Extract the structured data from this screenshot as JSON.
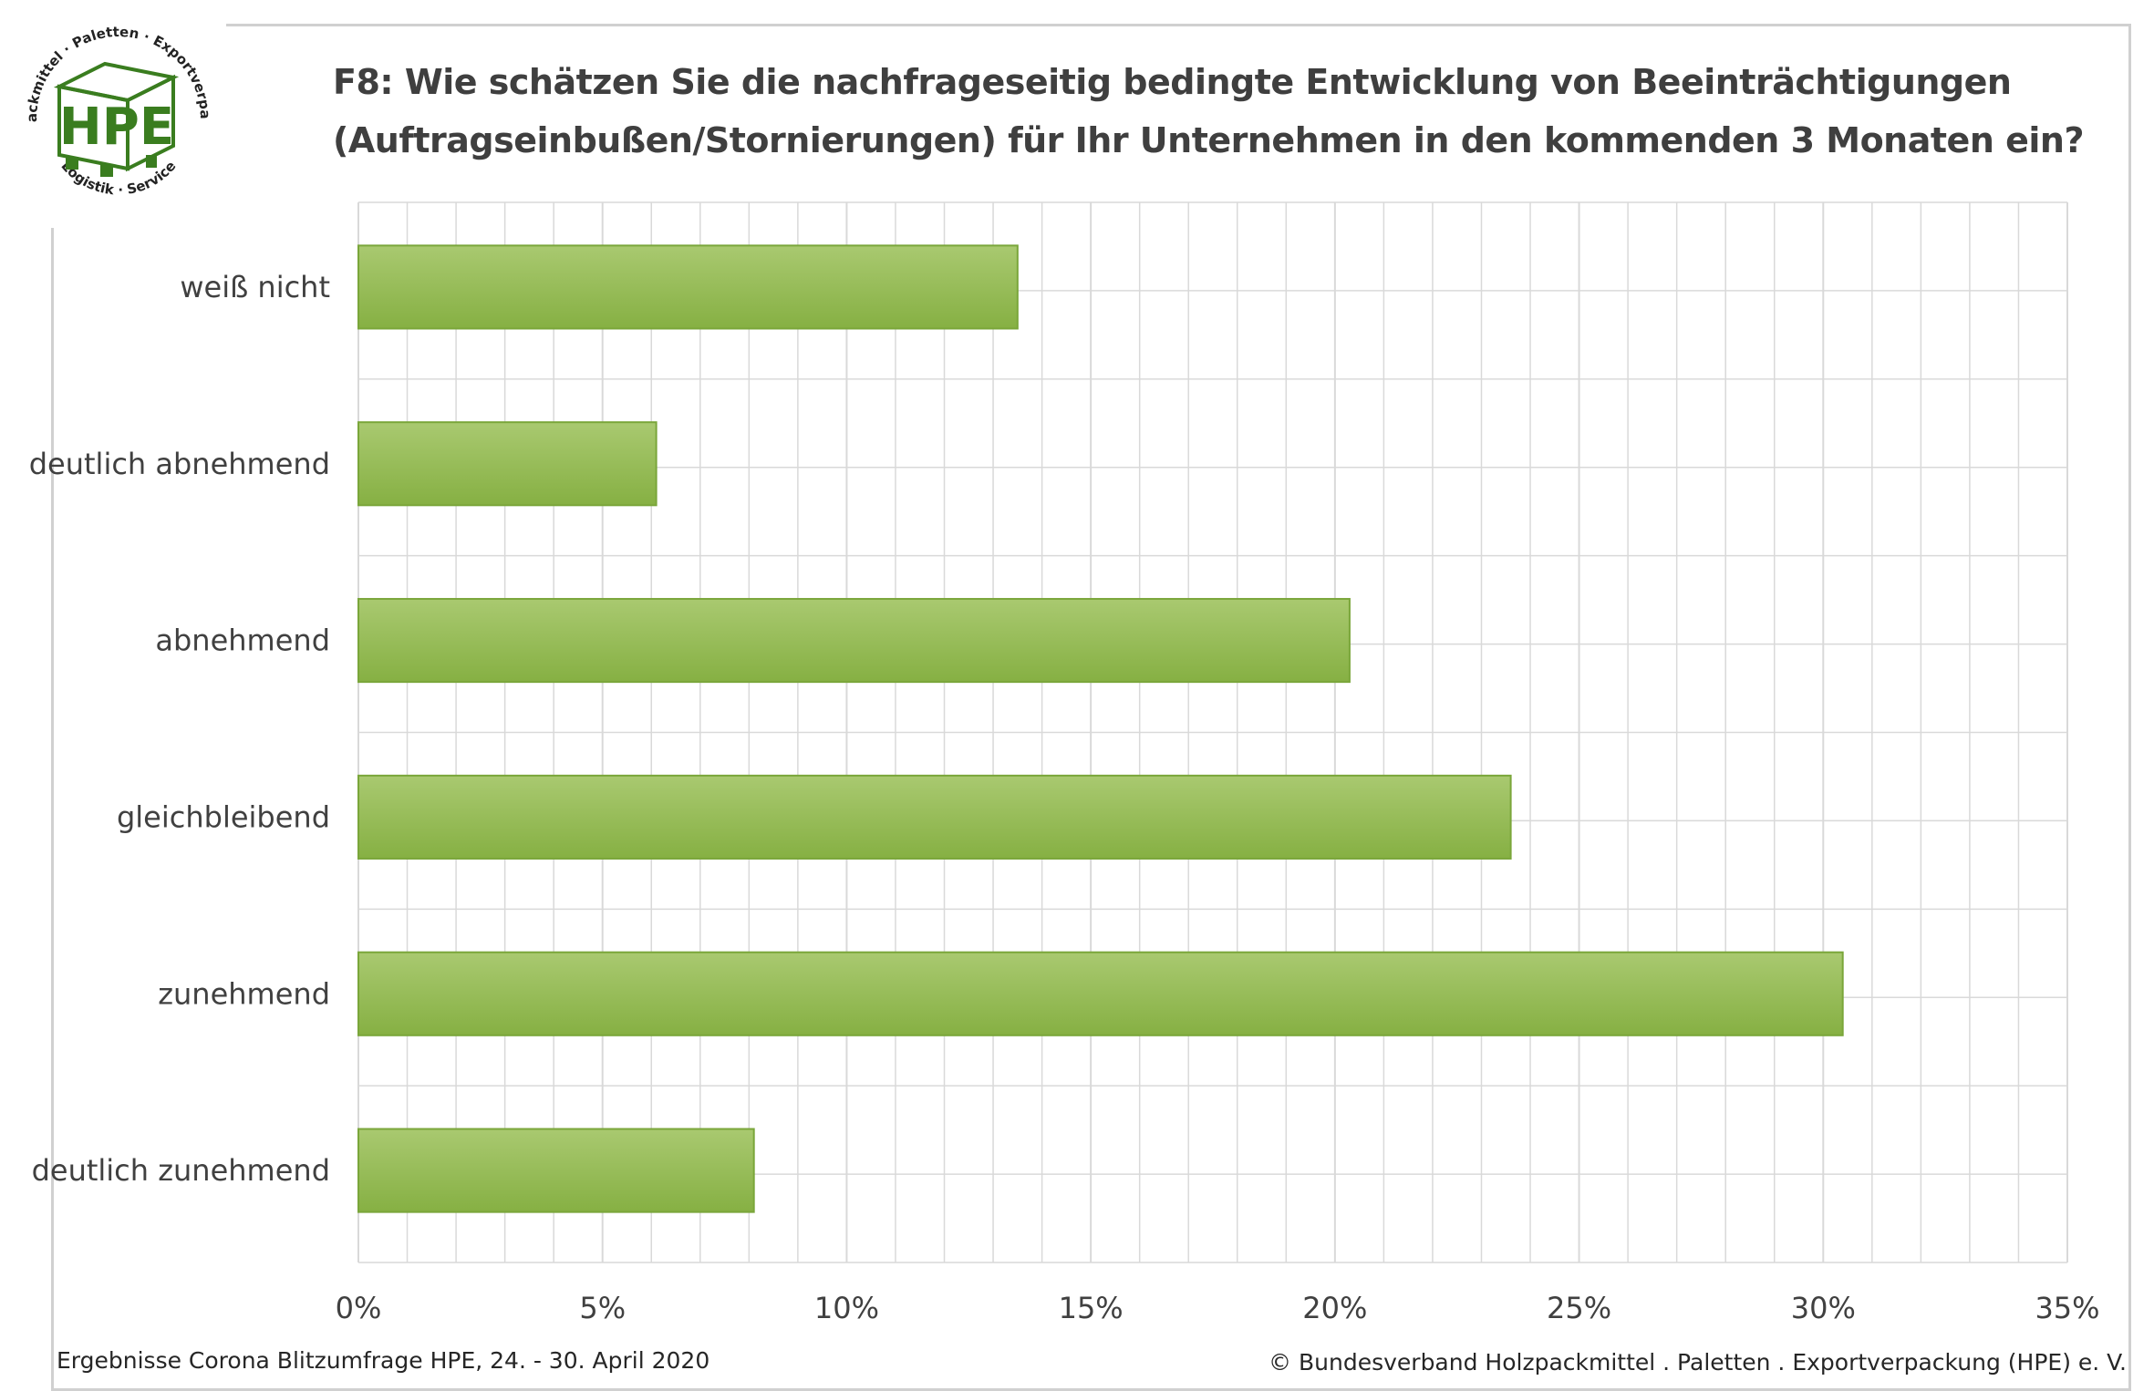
{
  "logo": {
    "text": "HPE",
    "ring_top": "Holzpackmittel · Paletten · Exportverpackung",
    "ring_bottom": "Logistik · Service",
    "color": "#3a7d1f"
  },
  "title_lines": [
    "F8: Wie schätzen Sie die nachfrageseitig bedingte Entwicklung von Beeinträchtigungen",
    "(Auftragseinbußen/Stornierungen) für Ihr Unternehmen in den kommenden 3 Monaten ein?"
  ],
  "footer": {
    "left": "Ergebnisse Corona Blitzumfrage HPE, 24. - 30. April 2020",
    "right": "© Bundesverband Holzpackmittel . Paletten . Exportverpackung (HPE) e. V."
  },
  "chart_data": {
    "type": "bar",
    "orientation": "horizontal",
    "categories": [
      "weiß nicht",
      "deutlich abnehmend",
      "abnehmend",
      "gleichbleibend",
      "zunehmend",
      "deutlich zunehmend"
    ],
    "values": [
      13.5,
      6.1,
      20.3,
      23.6,
      30.4,
      8.1
    ],
    "xlim": [
      0,
      35
    ],
    "x_ticks": [
      "0%",
      "5%",
      "10%",
      "15%",
      "20%",
      "25%",
      "30%",
      "35%"
    ],
    "grid": true,
    "colors": {
      "bar_top": "#a9c970",
      "bar_bottom": "#86b043",
      "bar_border": "#7aa63a",
      "grid": "#d9d9d9"
    }
  }
}
